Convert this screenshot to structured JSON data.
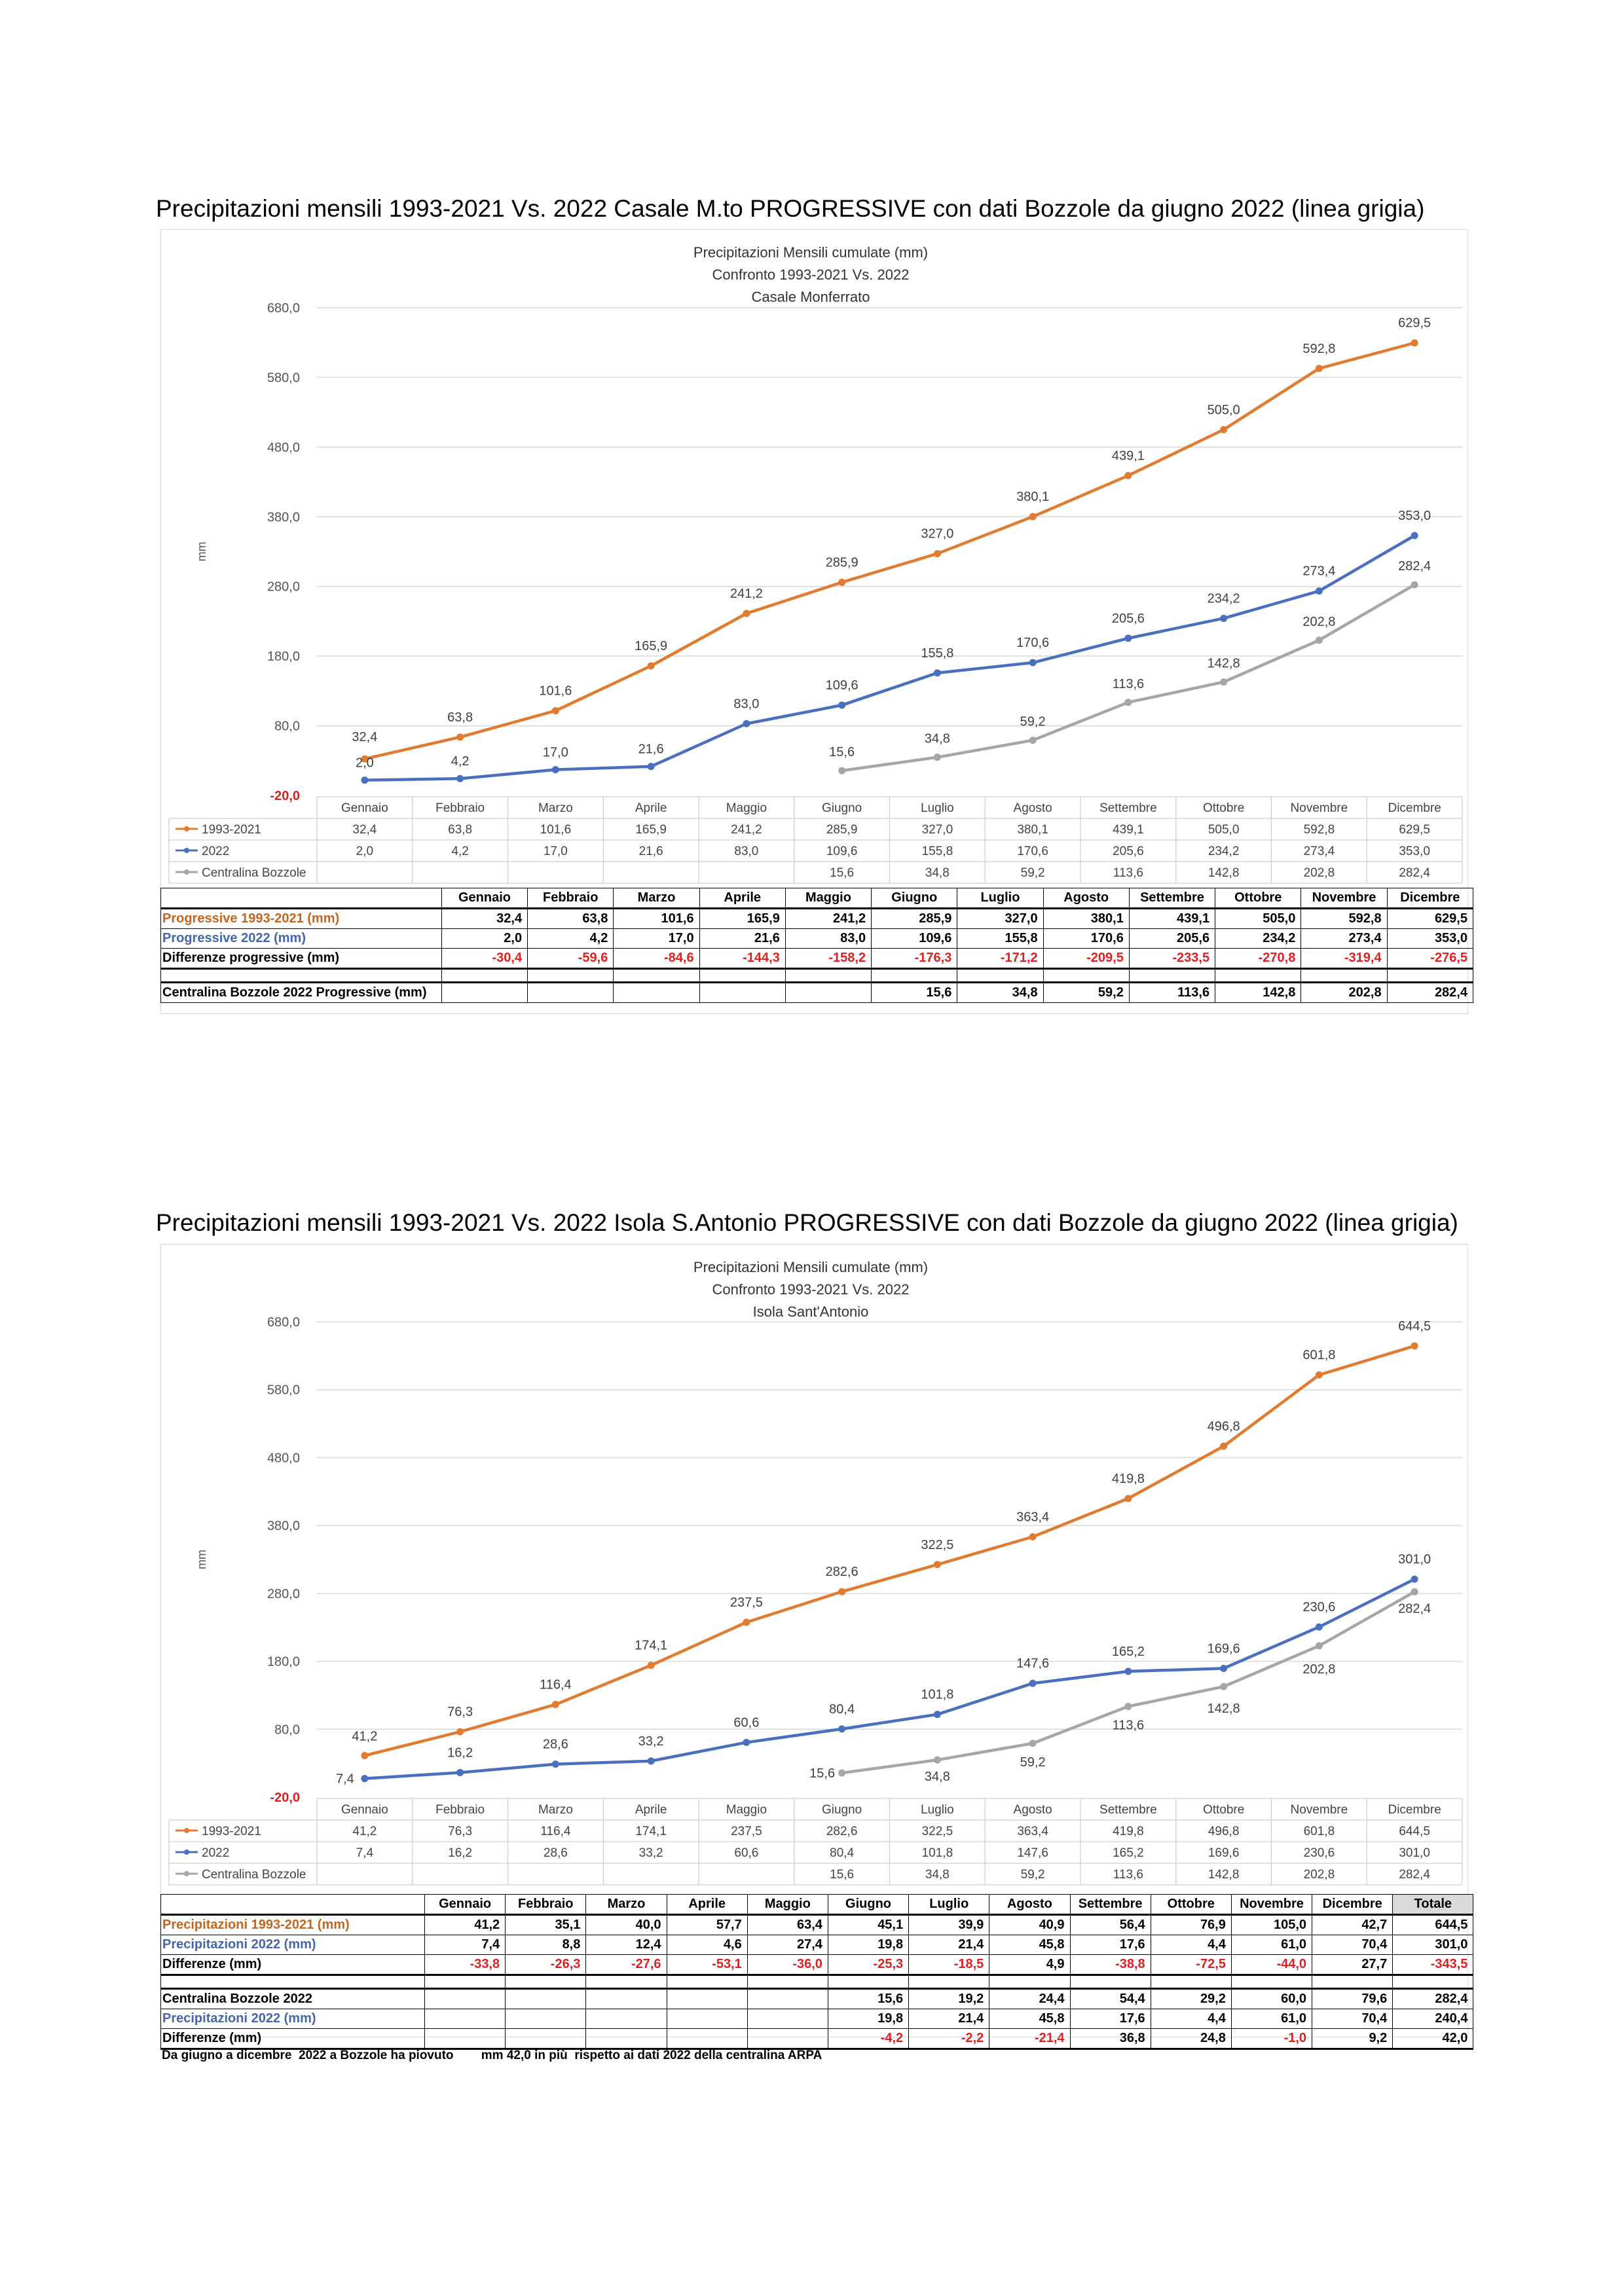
{
  "section1": {
    "title": "Precipitazioni mensili 1993-2021 Vs. 2022 Casale M.to PROGRESSIVE con dati Bozzole da giugno 2022 (linea grigia)",
    "table": {
      "headers": [
        "Gennaio",
        "Febbraio",
        "Marzo",
        "Aprile",
        "Maggio",
        "Giugno",
        "Luglio",
        "Agosto",
        "Settembre",
        "Ottobre",
        "Novembre",
        "Dicembre"
      ],
      "rows": [
        {
          "label": "Progressive 1993-2021  (mm)",
          "values": [
            "32,4",
            "63,8",
            "101,6",
            "165,9",
            "241,2",
            "285,9",
            "327,0",
            "380,1",
            "439,1",
            "505,0",
            "592,8",
            "629,5"
          ]
        },
        {
          "label": "Progressive 2022   (mm)",
          "values": [
            "2,0",
            "4,2",
            "17,0",
            "21,6",
            "83,0",
            "109,6",
            "155,8",
            "170,6",
            "205,6",
            "234,2",
            "273,4",
            "353,0"
          ]
        },
        {
          "label": "Differenze progressive   (mm)",
          "values": [
            "-30,4",
            "-59,6",
            "-84,6",
            "-144,3",
            "-158,2",
            "-176,3",
            "-171,2",
            "-209,5",
            "-233,5",
            "-270,8",
            "-319,4",
            "-276,5"
          ]
        },
        {
          "label": "Centralina Bozzole 2022 Progressive (mm)",
          "values": [
            "",
            "",
            "",
            "",
            "",
            "15,6",
            "34,8",
            "59,2",
            "113,6",
            "142,8",
            "202,8",
            "282,4"
          ]
        }
      ]
    }
  },
  "section2": {
    "title": "Precipitazioni mensili 1993-2021 Vs. 2022 Isola S.Antonio PROGRESSIVE con dati Bozzole da giugno 2022 (linea grigia)",
    "table": {
      "headers": [
        "Gennaio",
        "Febbraio",
        "Marzo",
        "Aprile",
        "Maggio",
        "Giugno",
        "Luglio",
        "Agosto",
        "Settembre",
        "Ottobre",
        "Novembre",
        "Dicembre",
        "Totale"
      ],
      "rows": [
        {
          "label": "Precipitazioni 1993-2021  (mm)",
          "values": [
            "41,2",
            "35,1",
            "40,0",
            "57,7",
            "63,4",
            "45,1",
            "39,9",
            "40,9",
            "56,4",
            "76,9",
            "105,0",
            "42,7",
            "644,5"
          ]
        },
        {
          "label": "Precipitazioni 2022   (mm)",
          "values": [
            "7,4",
            "8,8",
            "12,4",
            "4,6",
            "27,4",
            "19,8",
            "21,4",
            "45,8",
            "17,6",
            "4,4",
            "61,0",
            "70,4",
            "301,0"
          ]
        },
        {
          "label": "Differenze    (mm)",
          "values": [
            "-33,8",
            "-26,3",
            "-27,6",
            "-53,1",
            "-36,0",
            "-25,3",
            "-18,5",
            "4,9",
            "-38,8",
            "-72,5",
            "-44,0",
            "27,7",
            "-343,5"
          ]
        },
        {
          "label": "Centralina Bozzole 2022",
          "values": [
            "",
            "",
            "",
            "",
            "",
            "15,6",
            "19,2",
            "24,4",
            "54,4",
            "29,2",
            "60,0",
            "79,6",
            "282,4"
          ]
        },
        {
          "label": "Precipitazioni 2022   (mm)",
          "values": [
            "",
            "",
            "",
            "",
            "",
            "19,8",
            "21,4",
            "45,8",
            "17,6",
            "4,4",
            "61,0",
            "70,4",
            "240,4"
          ]
        },
        {
          "label": "Differenze    (mm)",
          "values": [
            "",
            "",
            "",
            "",
            "",
            "-4,2",
            "-2,2",
            "-21,4",
            "36,8",
            "24,8",
            "-1,0",
            "9,2",
            "42,0"
          ]
        }
      ],
      "note_a": "Da giugno a dicembre  2022 a Bozzole ha piovuto",
      "note_b": "mm 42,0 in più  rispetto ai dati 2022 della centralina ARPA"
    }
  },
  "colors": {
    "orange": "#e07b2f",
    "blue": "#4a6fbf",
    "gray": "#a6a6a6",
    "red": "#e02020"
  },
  "chart_data": [
    {
      "type": "line",
      "title": "Precipitazioni Mensili cumulate (mm)",
      "subtitle": "Confronto 1993-2021 Vs. 2022",
      "subtitle2": "Casale Monferrato",
      "ylabel": "mm",
      "ylim": [
        -20,
        680
      ],
      "yticks": [
        "680,0",
        "580,0",
        "480,0",
        "380,0",
        "280,0",
        "180,0",
        "80,0",
        "-20,0"
      ],
      "ytick_values": [
        680,
        580,
        480,
        380,
        280,
        180,
        80,
        -20
      ],
      "categories": [
        "Gennaio",
        "Febbraio",
        "Marzo",
        "Aprile",
        "Maggio",
        "Giugno",
        "Luglio",
        "Agosto",
        "Settembre",
        "Ottobre",
        "Novembre",
        "Dicembre"
      ],
      "series": [
        {
          "name": "1993-2021",
          "color": "#e07b2f",
          "values": [
            32.4,
            63.8,
            101.6,
            165.9,
            241.2,
            285.9,
            327.0,
            380.1,
            439.1,
            505.0,
            592.8,
            629.5
          ],
          "labels": [
            "32,4",
            "63,8",
            "101,6",
            "165,9",
            "241,2",
            "285,9",
            "327,0",
            "380,1",
            "439,1",
            "505,0",
            "592,8",
            "629,5"
          ]
        },
        {
          "name": "2022",
          "color": "#4a6fbf",
          "values": [
            2.0,
            4.2,
            17.0,
            21.6,
            83.0,
            109.6,
            155.8,
            170.6,
            205.6,
            234.2,
            273.4,
            353.0
          ],
          "labels": [
            "2,0",
            "4,2",
            "17,0",
            "21,6",
            "83,0",
            "109,6",
            "155,8",
            "170,6",
            "205,6",
            "234,2",
            "273,4",
            "353,0"
          ]
        },
        {
          "name": "Centralina Bozzole",
          "color": "#a6a6a6",
          "values": [
            null,
            null,
            null,
            null,
            null,
            15.6,
            34.8,
            59.2,
            113.6,
            142.8,
            202.8,
            282.4
          ],
          "labels": [
            "",
            "",
            "",
            "",
            "",
            "15,6",
            "34,8",
            "59,2",
            "113,6",
            "142,8",
            "202,8",
            "282,4"
          ]
        }
      ]
    },
    {
      "type": "line",
      "title": "Precipitazioni Mensili cumulate (mm)",
      "subtitle": "Confronto 1993-2021 Vs. 2022",
      "subtitle2": "Isola Sant'Antonio",
      "ylabel": "mm",
      "ylim": [
        -20,
        680
      ],
      "yticks": [
        "680,0",
        "580,0",
        "480,0",
        "380,0",
        "280,0",
        "180,0",
        "80,0",
        "-20,0"
      ],
      "ytick_values": [
        680,
        580,
        480,
        380,
        280,
        180,
        80,
        -20
      ],
      "categories": [
        "Gennaio",
        "Febbraio",
        "Marzo",
        "Aprile",
        "Maggio",
        "Giugno",
        "Luglio",
        "Agosto",
        "Settembre",
        "Ottobre",
        "Novembre",
        "Dicembre"
      ],
      "series": [
        {
          "name": "1993-2021",
          "color": "#e07b2f",
          "values": [
            41.2,
            76.3,
            116.4,
            174.1,
            237.5,
            282.6,
            322.5,
            363.4,
            419.8,
            496.8,
            601.8,
            644.5
          ],
          "labels": [
            "41,2",
            "76,3",
            "116,4",
            "174,1",
            "237,5",
            "282,6",
            "322,5",
            "363,4",
            "419,8",
            "496,8",
            "601,8",
            "644,5"
          ]
        },
        {
          "name": "2022",
          "color": "#4a6fbf",
          "values": [
            7.4,
            16.2,
            28.6,
            33.2,
            60.6,
            80.4,
            101.8,
            147.6,
            165.2,
            169.6,
            230.6,
            301.0
          ],
          "labels": [
            "7,4",
            "16,2",
            "28,6",
            "33,2",
            "60,6",
            "80,4",
            "101,8",
            "147,6",
            "165,2",
            "169,6",
            "230,6",
            "301,0"
          ]
        },
        {
          "name": "Centralina Bozzole",
          "color": "#a6a6a6",
          "values": [
            null,
            null,
            null,
            null,
            null,
            15.6,
            34.8,
            59.2,
            113.6,
            142.8,
            202.8,
            282.4
          ],
          "labels": [
            "",
            "",
            "",
            "",
            "",
            "15,6",
            "34,8",
            "59,2",
            "113,6",
            "142,8",
            "202,8",
            "282,4"
          ]
        }
      ]
    }
  ]
}
